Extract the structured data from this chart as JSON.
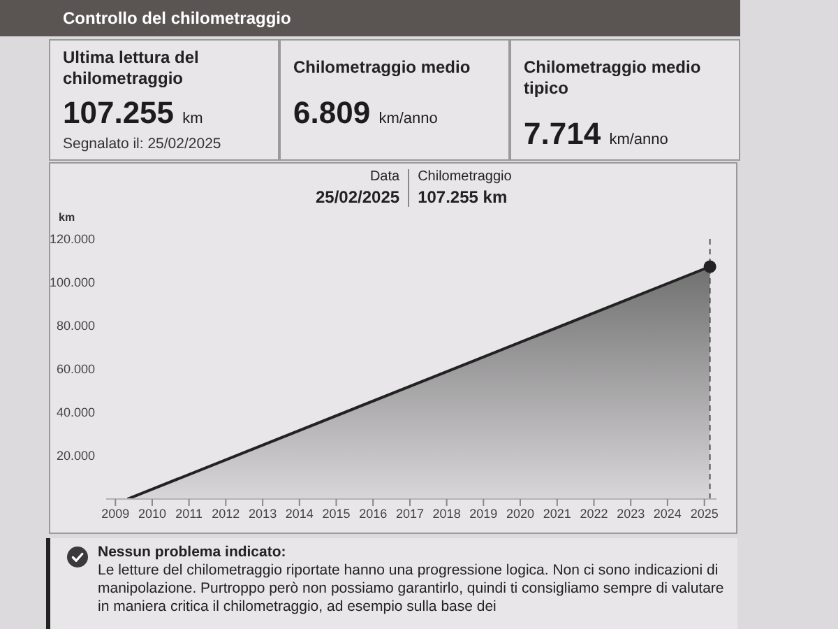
{
  "chart_data": [
    {
      "type": "other",
      "title": "Controllo del chilometraggio",
      "annotations": [
        "Ultima lettura del chilometraggio",
        "107.255 km",
        "Segnalato il: 25/02/2025",
        "Chilometraggio medio",
        "6.809 km/anno",
        "Chilometraggio medio tipico",
        "7.714 km/anno"
      ]
    },
    {
      "type": "area",
      "ylabel": "km",
      "xlim": [
        "2008-10",
        "2025-05"
      ],
      "xticks": [
        "2009",
        "2010",
        "2011",
        "2012",
        "2013",
        "2014",
        "2015",
        "2016",
        "2017",
        "2018",
        "2019",
        "2020",
        "2021",
        "2022",
        "2023",
        "2024",
        "2025"
      ],
      "ylim": [
        0,
        120000
      ],
      "yticks": [
        {
          "value": 20000,
          "label": "20.000"
        },
        {
          "value": 40000,
          "label": "40.000"
        },
        {
          "value": 60000,
          "label": "60.000"
        },
        {
          "value": 80000,
          "label": "80.000"
        },
        {
          "value": 100000,
          "label": "100.000"
        },
        {
          "value": 120000,
          "label": "120.000"
        }
      ],
      "series": [
        {
          "type": "area",
          "color": "#222222",
          "x": [
            "2009-05",
            "2025-02-25"
          ],
          "values": [
            0,
            107255
          ]
        },
        {
          "type": "scatter",
          "color": "#222222",
          "marker": "circle",
          "x": [
            "2025-02-25"
          ],
          "values": [
            107255
          ]
        }
      ],
      "ref_lines": [
        {
          "axis": "x",
          "value": "2025-02-25",
          "color": "#555555",
          "line_style": "dashed"
        }
      ],
      "annotations": [
        "Data",
        "25/02/2025",
        "Chilometraggio",
        "107.255 km",
        "Nessun problema indicato:",
        "Le letture del chilometraggio riportate hanno una progressione logica. Non ci sono indicazioni di manipolazione. Purtroppo però non possiamo garantirlo, quindi ti consigliamo sempre di valutare in maniera critica il chilometraggio, ad esempio sulla base dei"
      ]
    }
  ]
}
